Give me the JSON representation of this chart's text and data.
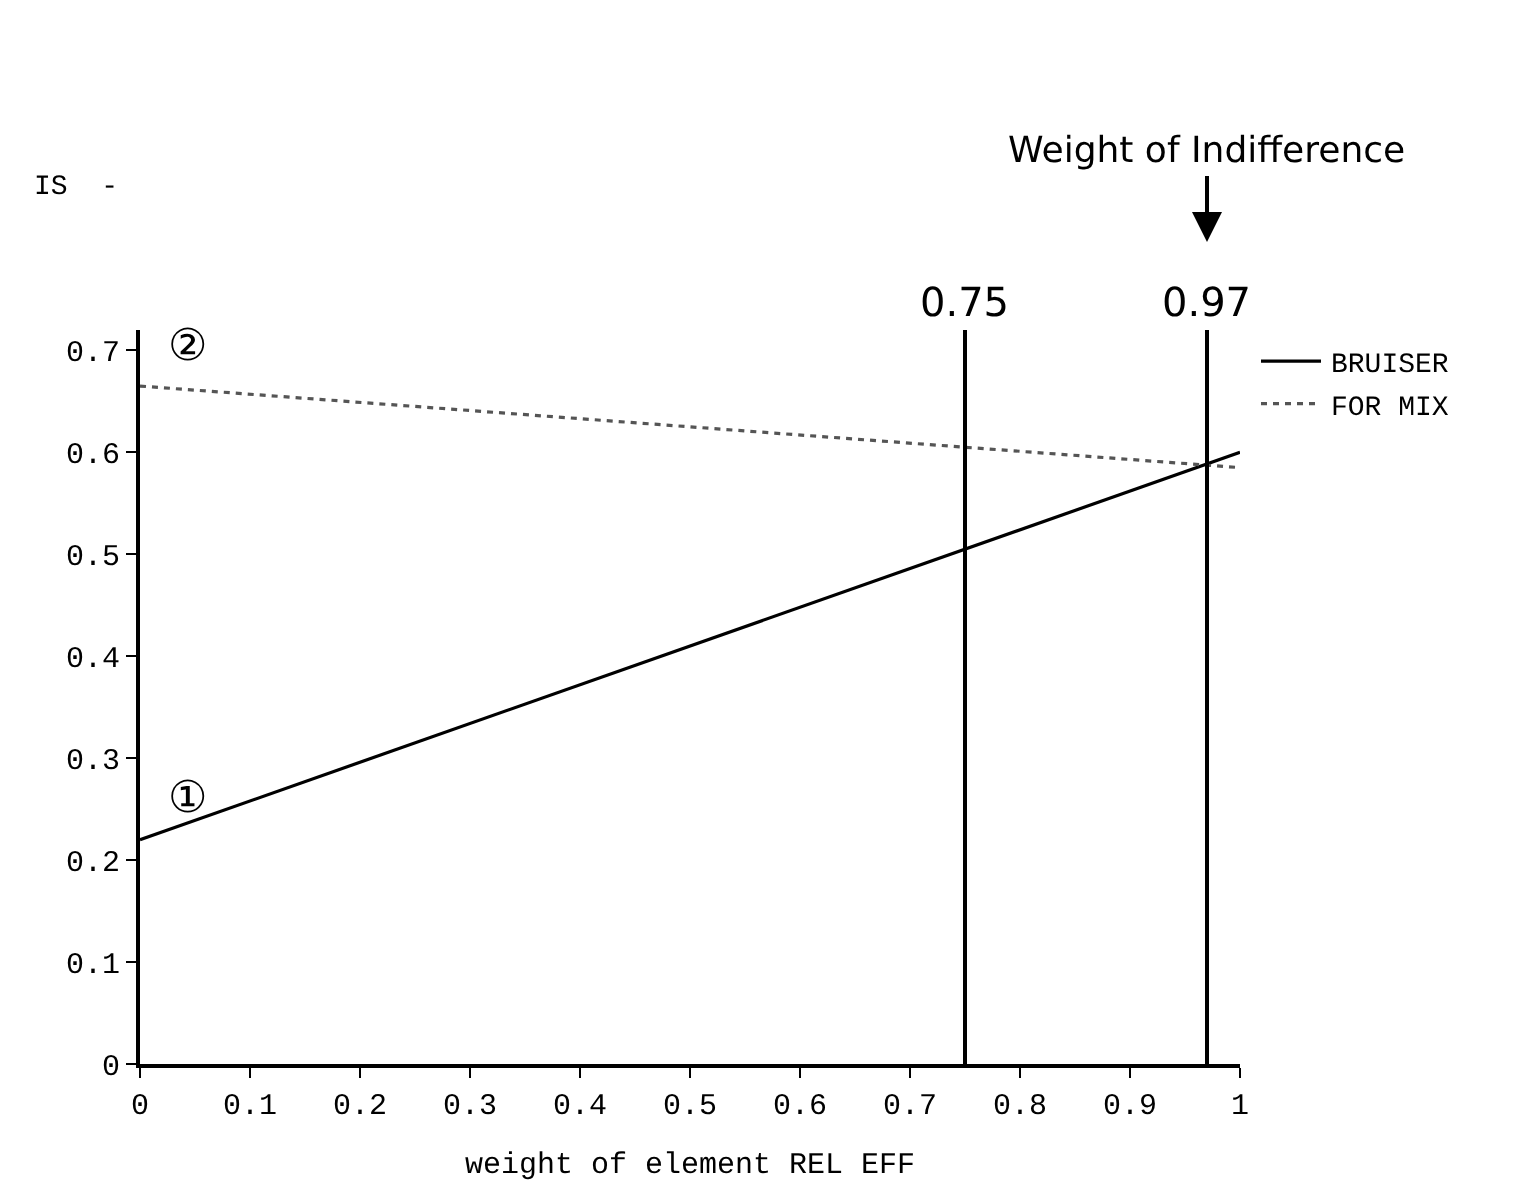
{
  "chart_data": {
    "type": "line",
    "xlabel": "weight of element REL EFF",
    "x": [
      0,
      1
    ],
    "series": [
      {
        "name": "BRUISER",
        "color": "#000000",
        "values": [
          0.22,
          0.6
        ],
        "line_style": "solid"
      },
      {
        "name": "FOR MIX",
        "color": "#555555",
        "values": [
          0.665,
          0.585
        ],
        "line_style": "dotted"
      }
    ],
    "xlim": [
      0,
      1
    ],
    "xticks": [
      0,
      0.1,
      0.2,
      0.3,
      0.4,
      0.5,
      0.6,
      0.7,
      0.8,
      0.9,
      1
    ],
    "ylim": [
      0,
      0.72
    ],
    "yticks": [
      0,
      0.1,
      0.2,
      0.3,
      0.4,
      0.5,
      0.6,
      0.7
    ],
    "ref_lines": [
      {
        "axis": "x",
        "value": 0.75,
        "label": "0.75",
        "color": "#000000"
      },
      {
        "axis": "x",
        "value": 0.97,
        "label": "0.97",
        "color": "#000000"
      }
    ],
    "annotations": [
      "Weight of Indifference",
      "①",
      "②",
      "IS  -"
    ],
    "legend": "top right",
    "marker": "none"
  }
}
